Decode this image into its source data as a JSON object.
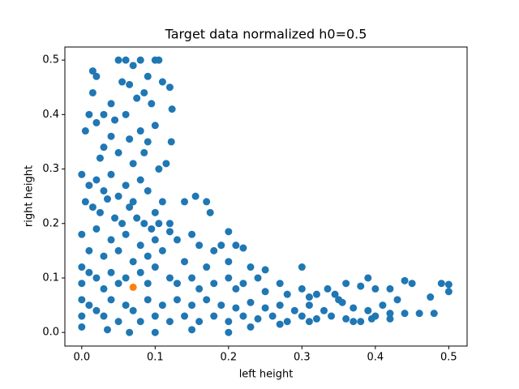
{
  "chart_data": {
    "type": "scatter",
    "title": "Target data normalized h0=0.5",
    "xlabel": "left height",
    "ylabel": "right height",
    "xlim": [
      -0.023,
      0.525
    ],
    "ylim": [
      -0.025,
      0.524
    ],
    "xticks": [
      {
        "value": 0,
        "label": "0.0"
      },
      0.1,
      0.2,
      0.3,
      0.4,
      0.5
    ],
    "yticks": [
      {
        "value": 0,
        "label": "0.0"
      },
      0.1,
      0.2,
      0.3,
      0.4,
      0.5
    ],
    "series": [
      {
        "color": "#1f77b4",
        "x": [
          0.05,
          0.06,
          0.07,
          0.08,
          0.1,
          0.105,
          0.015,
          0.02,
          0.055,
          0.065,
          0.09,
          0.11,
          0.12,
          0.085,
          0.015,
          0.04,
          0.075,
          0.095,
          0.123,
          0.005,
          0.01,
          0.03,
          0.02,
          0.045,
          0.06,
          0.1,
          0.08,
          0.09,
          0.122,
          0.04,
          0.065,
          0.03,
          0.05,
          0.085,
          0.115,
          0.025,
          0.105,
          0.07,
          0,
          0.01,
          0.02,
          0.03,
          0.04,
          0.05,
          0.06,
          0.07,
          0.08,
          0.09,
          0.1,
          0.11,
          0.12,
          0.005,
          0.015,
          0.025,
          0.035,
          0.045,
          0.055,
          0.065,
          0.075,
          0.085,
          0.095,
          0.105,
          0.14,
          0.155,
          0.17,
          0.175,
          0.2,
          0.12,
          0,
          0.02,
          0.04,
          0.06,
          0.08,
          0.1,
          0.13,
          0.15,
          0.16,
          0.18,
          0.19,
          0.21,
          0.22,
          0.01,
          0.03,
          0.05,
          0.07,
          0.09,
          0.11,
          0.14,
          0.17,
          0.2,
          0.23,
          0.25,
          0,
          0,
          0,
          0,
          0,
          0.01,
          0.02,
          0.03,
          0.04,
          0.05,
          0.06,
          0.08,
          0.09,
          0.1,
          0.12,
          0.13,
          0.15,
          0.16,
          0.18,
          0.2,
          0.21,
          0.22,
          0.24,
          0.25,
          0.27,
          0.28,
          0.3,
          0.3,
          0.31,
          0.32,
          0.01,
          0.02,
          0.03,
          0.04,
          0.05,
          0.06,
          0.07,
          0.08,
          0.09,
          0.1,
          0.11,
          0.12,
          0.13,
          0.14,
          0.15,
          0.16,
          0.17,
          0.18,
          0.19,
          0.2,
          0.21,
          0.22,
          0.23,
          0.24,
          0.25,
          0.26,
          0.27,
          0.28,
          0.29,
          0.3,
          0.31,
          0.32,
          0.33,
          0.34,
          0.35,
          0.36,
          0.37,
          0.38,
          0.39,
          0.4,
          0.41,
          0.42,
          0.43,
          0.44,
          0.45,
          0.46,
          0.48,
          0.49,
          0.5,
          0.5,
          0.36,
          0.38,
          0.39,
          0.4,
          0.42,
          0.44,
          0.335,
          0.345,
          0.355,
          0.2,
          0.23,
          0.15,
          0.1,
          0.065,
          0.035,
          0.27,
          0.31,
          0.37,
          0.42,
          0.475,
          0.395
        ],
        "values": [
          0.5,
          0.5,
          0.49,
          0.5,
          0.5,
          0.5,
          0.48,
          0.47,
          0.46,
          0.455,
          0.47,
          0.46,
          0.45,
          0.44,
          0.44,
          0.42,
          0.43,
          0.42,
          0.41,
          0.37,
          0.4,
          0.4,
          0.385,
          0.39,
          0.4,
          0.38,
          0.37,
          0.35,
          0.35,
          0.36,
          0.355,
          0.34,
          0.33,
          0.33,
          0.31,
          0.32,
          0.3,
          0.31,
          0.29,
          0.27,
          0.28,
          0.26,
          0.29,
          0.25,
          0.27,
          0.24,
          0.28,
          0.26,
          0.22,
          0.24,
          0.2,
          0.24,
          0.23,
          0.22,
          0.245,
          0.21,
          0.2,
          0.23,
          0.21,
          0.2,
          0.19,
          0.2,
          0.24,
          0.25,
          0.24,
          0.22,
          0.185,
          0.185,
          0.18,
          0.19,
          0.17,
          0.18,
          0.16,
          0.17,
          0.17,
          0.18,
          0.16,
          0.15,
          0.16,
          0.16,
          0.155,
          0.15,
          0.14,
          0.15,
          0.13,
          0.14,
          0.15,
          0.13,
          0.12,
          0.13,
          0.12,
          0.115,
          0.12,
          0.09,
          0.06,
          0.03,
          0.01,
          0.11,
          0.1,
          0.08,
          0.11,
          0.09,
          0.1,
          0.11,
          0.09,
          0.12,
          0.1,
          0.09,
          0.1,
          0.08,
          0.09,
          0.1,
          0.08,
          0.09,
          0.1,
          0.075,
          0.09,
          0.07,
          0.12,
          0.08,
          0.065,
          0.07,
          0.05,
          0.04,
          0.03,
          0.06,
          0.02,
          0.05,
          0.04,
          0.02,
          0.06,
          0.03,
          0.05,
          0.02,
          0.06,
          0.03,
          0.05,
          0.02,
          0.06,
          0.03,
          0.05,
          0.02,
          0.045,
          0.03,
          0.055,
          0.025,
          0.045,
          0.03,
          0.05,
          0.02,
          0.04,
          0.03,
          0.05,
          0.025,
          0.04,
          0.03,
          0.06,
          0.025,
          0.045,
          0.02,
          0.04,
          0.03,
          0.05,
          0.035,
          0.06,
          0.035,
          0.09,
          0.035,
          0.035,
          0.09,
          0.075,
          0.088,
          0.09,
          0.085,
          0.1,
          0.08,
          0.08,
          0.095,
          0.08,
          0.07,
          0.055,
          0,
          0.01,
          0.005,
          0,
          0,
          0.005,
          0.015,
          0.02,
          0.02,
          0.025,
          0.065,
          0.025
        ]
      },
      {
        "color": "#ff7f0e",
        "x": [
          0.07
        ],
        "values": [
          0.083
        ]
      }
    ]
  }
}
